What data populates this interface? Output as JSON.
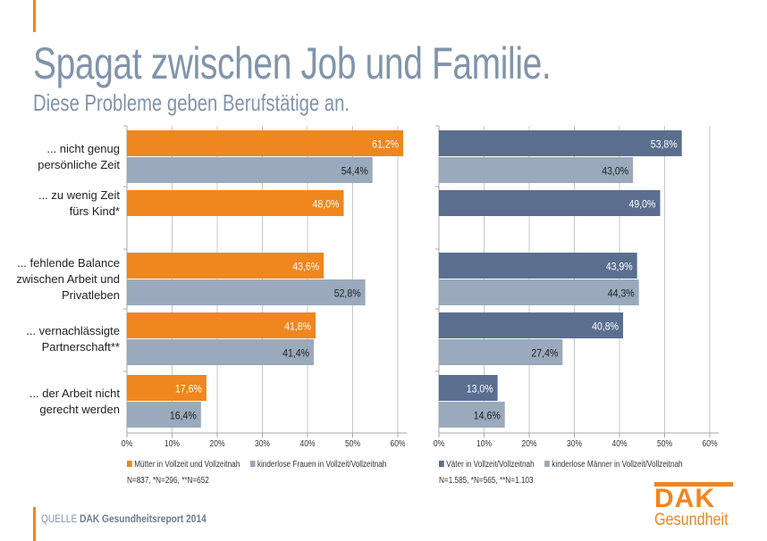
{
  "title": "Spagat zwischen Job und Familie.",
  "subtitle": "Diese Probleme geben Berufstätige an.",
  "colors": {
    "orange": "#f0861e",
    "gray": "#9aa9bc",
    "blue": "#5a6f8f",
    "title": "#8194aa"
  },
  "categories": [
    [
      "... nicht genug",
      "persönliche Zeit"
    ],
    [
      "... zu wenig Zeit",
      "fürs Kind*"
    ],
    [
      "... fehlende Balance",
      "zwischen Arbeit und",
      "Privatleben"
    ],
    [
      "... vernachlässigte",
      "Partnerschaft**"
    ],
    [
      "... der Arbeit nicht",
      "gerecht werden"
    ]
  ],
  "chart_data": [
    {
      "type": "bar",
      "orientation": "horizontal",
      "xlim": [
        0,
        60
      ],
      "ticks": [
        "0%",
        "10%",
        "20%",
        "30%",
        "40%",
        "50%",
        "60%"
      ],
      "series": [
        {
          "name": "Mütter in Vollzeit und Vollzeitnah",
          "values": [
            61.2,
            48.0,
            43.6,
            41.8,
            17.6
          ],
          "labels": [
            "61,2%",
            "48,0%",
            "43,6%",
            "41,8%",
            "17,6%"
          ]
        },
        {
          "name": "kinderlose Frauen in Vollzeit/Vollzeitnah",
          "values": [
            54.4,
            null,
            52.8,
            41.4,
            16.4
          ],
          "labels": [
            "54,4%",
            null,
            "52,8%",
            "41,4%",
            "16,4%"
          ]
        }
      ],
      "note": "N=837, *N=296, **N=652"
    },
    {
      "type": "bar",
      "orientation": "horizontal",
      "xlim": [
        0,
        60
      ],
      "ticks": [
        "0%",
        "10%",
        "20%",
        "30%",
        "40%",
        "50%",
        "60%"
      ],
      "series": [
        {
          "name": "Väter in Vollzeit/Vollzeitnah",
          "values": [
            53.8,
            49.0,
            43.9,
            40.8,
            13.0
          ],
          "labels": [
            "53,8%",
            "49,0%",
            "43,9%",
            "40,8%",
            "13,0%"
          ]
        },
        {
          "name": "kinderlose Männer in Vollzeit/Vollzeitnah",
          "values": [
            43.0,
            null,
            44.3,
            27.4,
            14.6
          ],
          "labels": [
            "43,0%",
            null,
            "44,3%",
            "27,4%",
            "14,6%"
          ]
        }
      ],
      "note": "N=1.585, *N=565, **N=1.103"
    }
  ],
  "source": {
    "prefix": "QUELLE",
    "text": "DAK Gesundheitsreport 2014"
  },
  "logo": {
    "brand": "DAK",
    "sub": "Gesundheit"
  }
}
